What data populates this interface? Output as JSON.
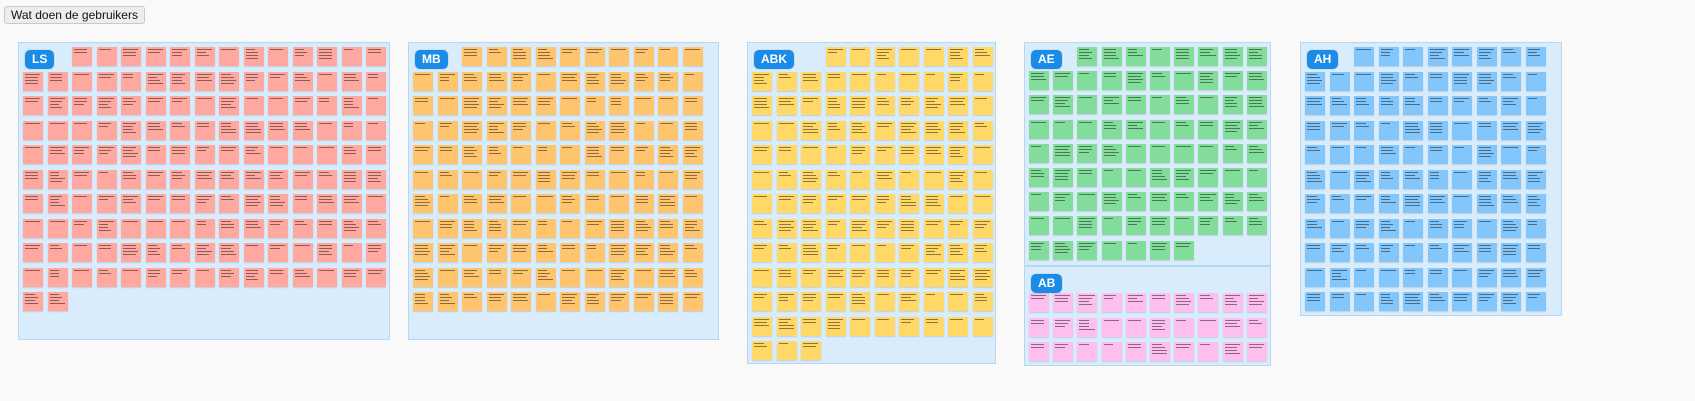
{
  "board": {
    "title": "Wat doen de gebruikers"
  },
  "clusters": [
    {
      "id": "ls",
      "label": "LS",
      "color": "#ffa8a0",
      "note_count": 150
    },
    {
      "id": "mb",
      "label": "MB",
      "color": "#ffc46e",
      "note_count": 130
    },
    {
      "id": "abk",
      "label": "ABK",
      "color": "#ffd868",
      "note_count": 120
    },
    {
      "id": "ae",
      "label": "AE",
      "color": "#82dc9a",
      "note_count": 85
    },
    {
      "id": "ab",
      "label": "AB",
      "color": "#ffbfee",
      "note_count": 30
    },
    {
      "id": "ah",
      "label": "AH",
      "color": "#82c6fb",
      "note_count": 110
    }
  ]
}
